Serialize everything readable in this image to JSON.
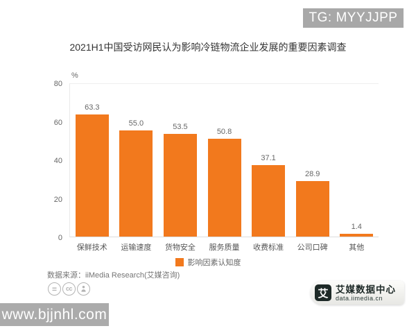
{
  "overlay": {
    "tg_label": "TG: MYYJJPP",
    "watermark_url": "www.bjjnhl.com"
  },
  "chart": {
    "title": "2021H1中国受访网民认为影响冷链物流企业发展的重要因素调查",
    "unit_label": "%",
    "legend_label": "影响因素认知度",
    "source_label": "数据来源：iiMedia Research(艾媒咨询)"
  },
  "chart_data": {
    "type": "bar",
    "title": "2021H1中国受访网民认为影响冷链物流企业发展的重要因素调查",
    "categories": [
      "保鲜技术",
      "运输速度",
      "货物安全",
      "服务质量",
      "收费标准",
      "公司口碑",
      "其他"
    ],
    "values": [
      63.3,
      55.0,
      53.5,
      50.8,
      37.1,
      28.9,
      1.4
    ],
    "value_labels": [
      "63.3",
      "55.0",
      "53.5",
      "50.8",
      "37.1",
      "28.9",
      "1.4"
    ],
    "series_name": "影响因素认知度",
    "ylabel": "%",
    "ylim": [
      0,
      80
    ],
    "y_ticks": [
      0,
      20,
      40,
      60,
      80
    ],
    "grid": false,
    "legend_position": "bottom",
    "bar_color": "#F2791D",
    "source": "数据来源：iiMedia Research(艾媒咨询)"
  },
  "footer_logo": {
    "icon_glyph": "艾",
    "name": "艾媒数据中心",
    "url": "data.iimedia.cn"
  }
}
